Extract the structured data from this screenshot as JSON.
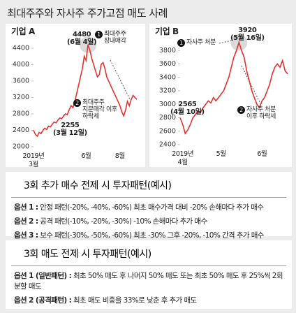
{
  "title": "최대주주와 자사주 주가고점 매도 사례",
  "chart_data": [
    {
      "type": "line",
      "title": "기업 A",
      "color": "#e8312f",
      "categories": [
        "2019년\n3월",
        null,
        null,
        null,
        null,
        null,
        null,
        null,
        null,
        null,
        null,
        null,
        null,
        null,
        null,
        null,
        null,
        null,
        null,
        null,
        null,
        null,
        null,
        null,
        null,
        null,
        null,
        null,
        "6월",
        null,
        null,
        null,
        null,
        null,
        null,
        null,
        null,
        null,
        null,
        null,
        null,
        null,
        null,
        null,
        null,
        null,
        "8월",
        null,
        null,
        null,
        null,
        null,
        null,
        null,
        null,
        null
      ],
      "values": [
        2400,
        2300,
        2255,
        2350,
        2320,
        2400,
        2450,
        2420,
        2500,
        2480,
        2550,
        2600,
        2580,
        2650,
        2700,
        2680,
        2750,
        2800,
        2780,
        2900,
        3000,
        2950,
        3100,
        3300,
        3500,
        3700,
        3900,
        4200,
        4100,
        4480,
        4350,
        4150,
        4000,
        3850,
        3700,
        3750,
        4000,
        4050,
        3900,
        3700,
        3600,
        3500,
        3400,
        3300,
        3200,
        3100,
        3000,
        2850,
        2750,
        2900,
        3100,
        3000,
        3150,
        3250,
        3200,
        3150
      ],
      "ylim": [
        2000,
        4500
      ],
      "yticks": [
        2000,
        2400,
        2800,
        3200,
        3600,
        4000,
        4400
      ],
      "annotations": [
        {
          "marker": "1",
          "text": "최대주주\n장내매각"
        },
        {
          "text": "4480\n(6월 4일)"
        },
        {
          "text": "2255\n(3월 12일)"
        },
        {
          "marker": "2",
          "text": "최대주주\n지분매각 이후\n하락세"
        }
      ]
    },
    {
      "type": "line",
      "title": "기업 B",
      "color": "#e8312f",
      "categories": [
        null,
        "2019년\n4월",
        null,
        null,
        null,
        null,
        null,
        null,
        null,
        null,
        null,
        null,
        null,
        null,
        null,
        null,
        "5월",
        null,
        null,
        null,
        null,
        null,
        null,
        null,
        null,
        null,
        null,
        null,
        null,
        null,
        null,
        null,
        "6월",
        null,
        null,
        null,
        null,
        null,
        null,
        null,
        null,
        null,
        null
      ],
      "values": [
        2800,
        2700,
        2565,
        2620,
        2700,
        2800,
        2850,
        2900,
        2880,
        2950,
        3000,
        3050,
        3020,
        3100,
        3050,
        3100,
        3150,
        3200,
        3300,
        3400,
        3550,
        3700,
        3800,
        3920,
        3800,
        3700,
        3500,
        3350,
        3200,
        3100,
        3000,
        2950,
        3050,
        3100,
        3200,
        3300,
        3450,
        3550,
        3600,
        3550,
        3650,
        3500,
        3450
      ],
      "ylim": [
        2400,
        4000
      ],
      "yticks": [
        2400,
        2600,
        2800,
        3000,
        3200,
        3400,
        3600,
        3800
      ],
      "annotations": [
        {
          "marker": "1",
          "text": "자사주 처분"
        },
        {
          "text": "3920\n(5월 16일)"
        },
        {
          "text": "2565\n(4월 10일)"
        },
        {
          "marker": "2",
          "text": "자사주 처분\n이후 하락세"
        }
      ]
    }
  ],
  "sections": [
    {
      "heading": "3회 추가 매수 전제 시 투자패턴(예시)",
      "options": [
        {
          "label": "옵션 1 :",
          "text": "안정 패턴(-20%, -40%, -60%) 최초 매수가격 대비 -20% 손해마다 추가 매수"
        },
        {
          "label": "옵션 2 :",
          "text": "공격 패턴(-10%, -20%, -30%) -10% 손해마다 추가 매수"
        },
        {
          "label": "옵션 3 :",
          "text": "보수 패턴(-30%, -50%, -60%) 최초 -30% 그후 -20%, -10% 간격 추가 매수"
        }
      ]
    },
    {
      "heading": "3회 매도 전제 시 투자패턴(예시)",
      "options": [
        {
          "label": "옵션 1 (일반패턴) :",
          "text": "최초 50% 매도 후 나머지 50% 매도 또는 최초 50% 매도 후 25%씩 2회 분할 매도"
        },
        {
          "label": "옵션 2 (공격패턴) :",
          "text": "최초 매도 비중을 33%로 낮춘 후 추가 매도"
        }
      ]
    }
  ]
}
